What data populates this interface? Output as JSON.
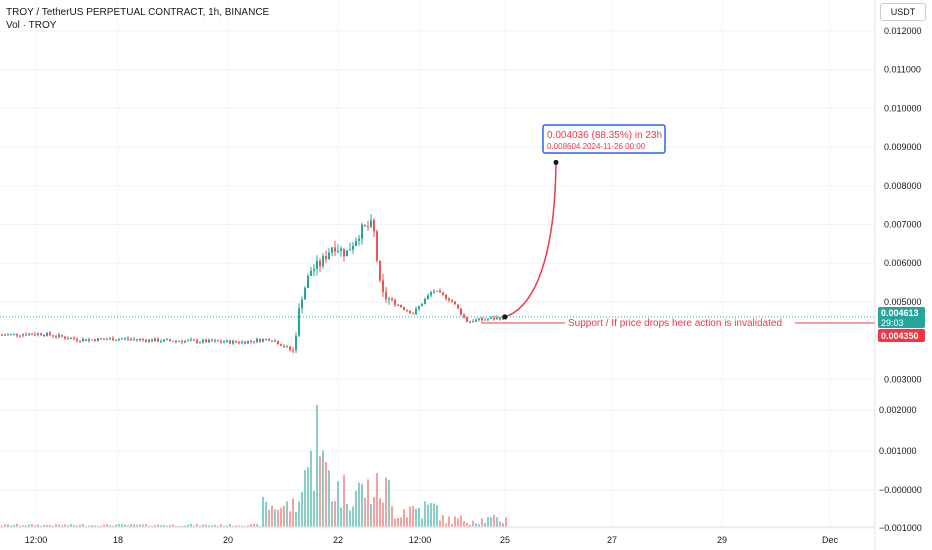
{
  "legend": {
    "title": "TROY / TetherUS PERPETUAL CONTRACT, 1h, BINANCE",
    "volume": "Vol · TROY"
  },
  "currency_button": "USDT",
  "colors": {
    "up": "#26a69a",
    "down": "#ef5350",
    "accent": "#2962ff",
    "arrow": "#f23645"
  },
  "chart_data": {
    "type": "candlestick",
    "symbol": "TROY / TetherUS PERPETUAL CONTRACT",
    "interval": "1h",
    "exchange": "BINANCE",
    "ylim": [
      0.0025,
      0.0125
    ],
    "price_ticks": [
      "0.012000",
      "0.011000",
      "0.010000",
      "0.009000",
      "0.008000",
      "0.007000",
      "0.006000",
      "0.005000",
      "0.003000",
      "0.002000",
      "0.001000",
      "−0.000000",
      "−0.001000"
    ],
    "x_ticks": [
      "12:00",
      "18",
      "20",
      "22",
      "12:00",
      "25",
      "27",
      "29",
      "Dec"
    ],
    "price_path": [
      {
        "x": 0,
        "price": 0.00415
      },
      {
        "x": 40,
        "price": 0.00418
      },
      {
        "x": 80,
        "price": 0.00402
      },
      {
        "x": 120,
        "price": 0.00405
      },
      {
        "x": 160,
        "price": 0.004
      },
      {
        "x": 200,
        "price": 0.00398
      },
      {
        "x": 240,
        "price": 0.00396
      },
      {
        "x": 270,
        "price": 0.00405
      },
      {
        "x": 292,
        "price": 0.00372
      },
      {
        "x": 300,
        "price": 0.0051
      },
      {
        "x": 310,
        "price": 0.00582
      },
      {
        "x": 320,
        "price": 0.006
      },
      {
        "x": 332,
        "price": 0.00648
      },
      {
        "x": 345,
        "price": 0.00625
      },
      {
        "x": 360,
        "price": 0.00685
      },
      {
        "x": 372,
        "price": 0.007
      },
      {
        "x": 380,
        "price": 0.0052
      },
      {
        "x": 395,
        "price": 0.00495
      },
      {
        "x": 412,
        "price": 0.0047
      },
      {
        "x": 432,
        "price": 0.0053
      },
      {
        "x": 450,
        "price": 0.00505
      },
      {
        "x": 466,
        "price": 0.0045
      },
      {
        "x": 485,
        "price": 0.00455
      },
      {
        "x": 505,
        "price": 0.00461
      }
    ],
    "current_price": {
      "value": "0.004613",
      "countdown": "29:03"
    },
    "support_price": "0.004350",
    "projection": {
      "target_price": 0.008604,
      "change_label": "0.004036 (88.35%) in 23h",
      "details_label": "0.008604    2024-11-26  00:00"
    },
    "support_annotation": "Support / If price drops here action is invalidated",
    "volume": {
      "ticks": [
        "0.002000",
        "0.001000",
        "−0.000000",
        "−0.001000"
      ]
    }
  }
}
